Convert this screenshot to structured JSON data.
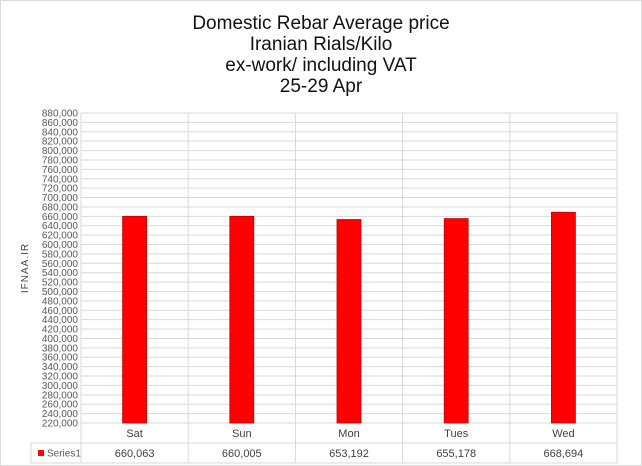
{
  "chart_data": {
    "type": "bar",
    "title_lines": [
      "Domestic Rebar Average price",
      "Iranian Rials/Kilo",
      "ex-work/ including VAT",
      "25-29 Apr"
    ],
    "ylabel": "IFNAA.IR",
    "xlabel": "",
    "categories": [
      "Sat",
      "Sun",
      "Mon",
      "Tues",
      "Wed"
    ],
    "series": [
      {
        "name": "Series1",
        "values": [
          660063,
          660005,
          653192,
          655178,
          668694
        ],
        "labels": [
          "660,063",
          "660,005",
          "653,192",
          "655,178",
          "668,694"
        ]
      }
    ],
    "ylim": [
      220000,
      880000
    ],
    "ytick_step": 20000,
    "grid": true,
    "data_table": true,
    "colors": {
      "bar": "#ff0000",
      "bar_edge": "#c00000",
      "grid": "#d9d9d9"
    }
  }
}
